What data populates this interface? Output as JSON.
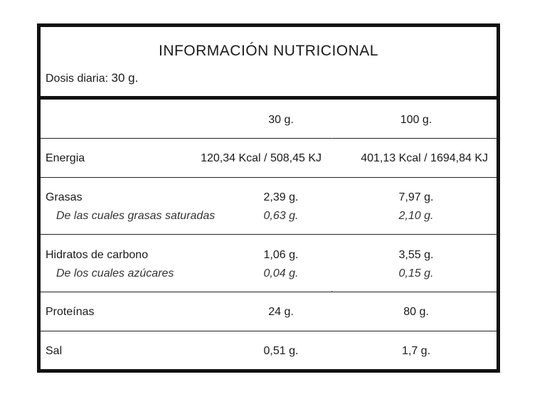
{
  "title": "INFORMACIÓN NUTRICIONAL",
  "dose": {
    "label": "Dosis diaria:",
    "value": "30 g."
  },
  "columns": [
    "30 g.",
    "100 g."
  ],
  "rows": {
    "energia": {
      "label": "Energia",
      "v30": "120,34 Kcal / 508,45 KJ",
      "v100": "401,13 Kcal / 1694,84 KJ"
    },
    "grasas": {
      "label": "Grasas",
      "v30": "2,39 g.",
      "v100": "7,97 g.",
      "sub_label": "De las cuales grasas saturadas",
      "sub_v30": "0,63 g.",
      "sub_v100": "2,10 g."
    },
    "hidratos": {
      "label": "Hidratos de carbono",
      "v30": "1,06 g.",
      "v100": "3,55 g.",
      "sub_label": "De los cuales azúcares",
      "sub_v30": "0,04 g.",
      "sub_v100": "0,15 g."
    },
    "proteinas": {
      "label": "Proteínas",
      "v30": "24 g.",
      "v100": "80 g."
    },
    "sal": {
      "label": "Sal",
      "v30": "0,51 g.",
      "v100": "1,7 g."
    }
  }
}
